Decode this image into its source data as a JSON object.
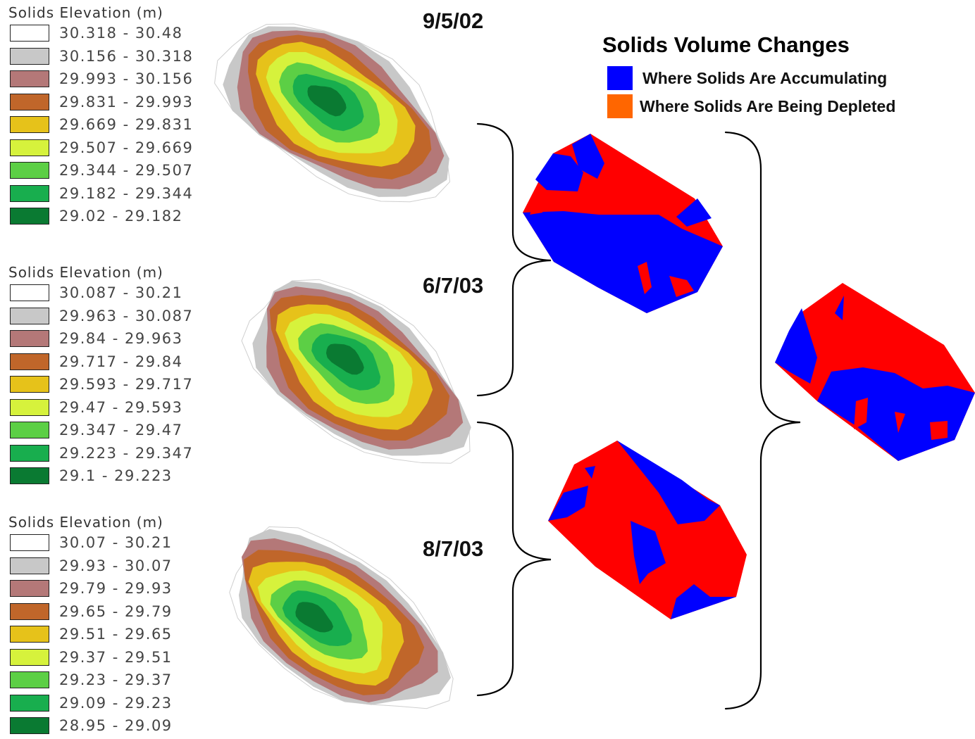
{
  "colors": {
    "accumulating": "#0000ff",
    "depleted_map": "#ff0000",
    "depleted_legend": "#ff6600",
    "classes": [
      "#ffffff",
      "#c8c8c8",
      "#b47878",
      "#c0662a",
      "#e6c21a",
      "#d6f23c",
      "#5ccf45",
      "#18ae4e",
      "#0a7a32"
    ]
  },
  "legends": [
    {
      "title": "Solids Elevation (m)",
      "classes": [
        "30.318 - 30.48",
        "30.156 - 30.318",
        "29.993 - 30.156",
        "29.831 - 29.993",
        "29.669 - 29.831",
        "29.507 - 29.669",
        "29.344 - 29.507",
        "29.182 - 29.344",
        "29.02 - 29.182"
      ]
    },
    {
      "title": "Solids Elevation (m)",
      "classes": [
        "30.087 - 30.21",
        "29.963 - 30.087",
        "29.84 - 29.963",
        "29.717 - 29.84",
        "29.593 - 29.717",
        "29.47 - 29.593",
        "29.347 - 29.47",
        "29.223 - 29.347",
        "29.1 - 29.223"
      ]
    },
    {
      "title": "Solids Elevation  (m)",
      "classes": [
        "30.07 - 30.21",
        "29.93 - 30.07",
        "29.79 - 29.93",
        "29.65 - 29.79",
        "29.51 - 29.65",
        "29.37 - 29.51",
        "29.23 - 29.37",
        "29.09 - 29.23",
        "28.95 - 29.09"
      ]
    }
  ],
  "dates": [
    "9/5/02",
    "6/7/03",
    "8/7/03"
  ],
  "volume_legend": {
    "title": "Solids Volume Changes",
    "items": [
      "Where Solids Are Accumulating",
      "Where Solids Are Being Depleted"
    ]
  }
}
